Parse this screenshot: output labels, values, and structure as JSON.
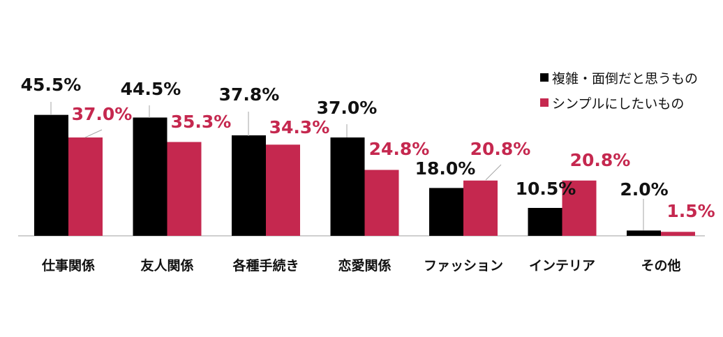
{
  "chart_data": {
    "type": "bar",
    "categories": [
      "仕事関係",
      "友人関係",
      "各種手続き",
      "恋愛関係",
      "ファッション",
      "インテリア",
      "その他"
    ],
    "series": [
      {
        "name": "複雑・面倒だと思うもの",
        "values": [
          45.5,
          44.5,
          37.8,
          37.0,
          18.0,
          10.5,
          2.0
        ],
        "labels": [
          "45.5%",
          "44.5%",
          "37.8%",
          "37.0%",
          "18.0%",
          "10.5%",
          "2.0%"
        ]
      },
      {
        "name": "シンプルにしたいもの",
        "values": [
          37.0,
          35.3,
          34.3,
          24.8,
          20.8,
          20.8,
          1.5
        ],
        "labels": [
          "37.0%",
          "35.3%",
          "34.3%",
          "24.8%",
          "20.8%",
          "20.8%",
          "1.5%"
        ]
      }
    ],
    "legend_position": "top-right",
    "grid": false,
    "ylim": [
      0,
      50
    ]
  },
  "colors": {
    "series1": "#000000",
    "series2": "#c5284f",
    "label2": "#c5284f",
    "baseline": "#bfbfbf",
    "leader": "#a6a6a6"
  }
}
